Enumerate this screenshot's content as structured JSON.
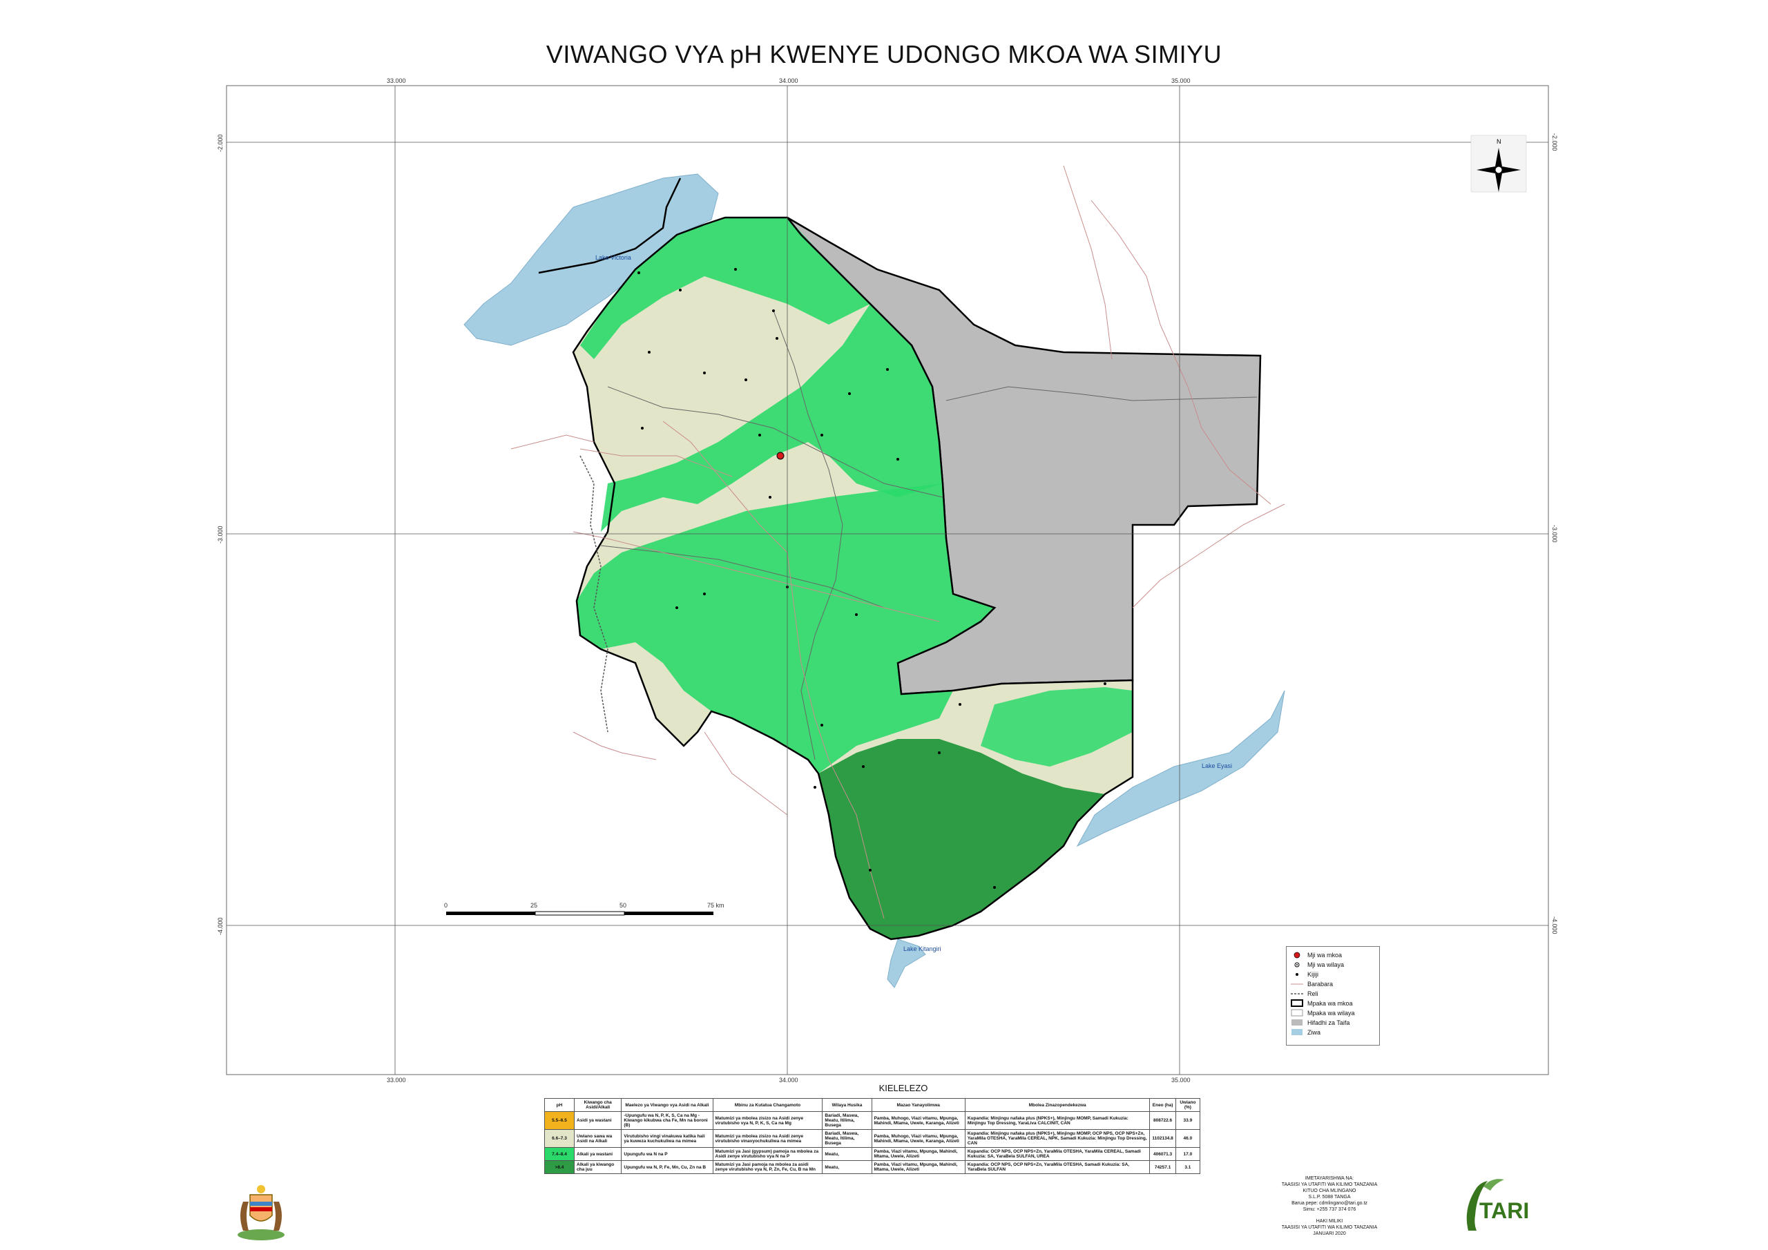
{
  "title": "VIWANGO VYA pH KWENYE UDONGO MKOA WA SIMIYU",
  "grid": {
    "lon_labels": [
      "33.000",
      "34.000",
      "35.000"
    ],
    "lat_labels": [
      "-2.000",
      "-3.000",
      "-4.000"
    ]
  },
  "lakes": {
    "victoria": "Lake Victoria",
    "eyasi": "Lake Eyasi",
    "kitangiri": "Lake Kitangiri"
  },
  "scale_bar": {
    "labels": [
      "0",
      "25",
      "50",
      "75 km"
    ]
  },
  "north_arrow": {
    "label": "N",
    "icon": "compass-rose-icon"
  },
  "legend": {
    "items": [
      {
        "label": "Mji wa mkoa",
        "color": "#d7191c"
      },
      {
        "label": "Mji wa wilaya",
        "color": "#000000"
      },
      {
        "label": "Kijiji",
        "color": "#000000"
      },
      {
        "label": "Barabara",
        "color": "#d9a0a0"
      },
      {
        "label": "Reli",
        "color": "#555555"
      },
      {
        "label": "Mpaka wa mkoa",
        "color": "#000000"
      },
      {
        "label": "Mpaka wa wilaya",
        "color": "#999999"
      },
      {
        "label": "Hifadhi za Taifa",
        "color": "#bbbbbb"
      },
      {
        "label": "Ziwa",
        "color": "#a6cee3"
      }
    ]
  },
  "kielelezo": {
    "title": "KIELELEZO",
    "headers": [
      "pH",
      "Kiwango cha Asidi/Alkali",
      "Maelezo ya Viwango vya Asidi na Alkali",
      "Mbinu za Kutatua Changamoto",
      "Wilaya Husika",
      "Mazao Yanayolimwa",
      "Mbolea Zinazopendekezwa",
      "Eneo (ha)",
      "Uwiano (%)"
    ],
    "rows": [
      {
        "ph": "5.5–6.5",
        "color": "#f2b21b",
        "level": "Asidi ya wastani",
        "desc": "-Upungufu wa N, P, K, S, Ca na Mg -Kiwango kikubwa cha Fe, Mn na boroni (B)",
        "method": "Matumizi ya mbolea zisizo na Asidi zenye virutubisho vya N, P, K, S, Ca na Mg",
        "district": "Bariadi, Maswa, Meatu, Itilima, Busega",
        "crops": "Pamba, Muhogo, Viazi vitamu, Mpunga, Mahindi, Mtama, Uwele, Karanga, Alizeti",
        "fertilizer": "Kupandia: Minjingu nafaka plus (NPKS+), Minjingu MOMP, Samadi Kukuzia: Minjingu Top Dressing, YaraLiva CALCINIT, CAN",
        "area": "808722.6",
        "ratio": "33.9"
      },
      {
        "ph": "6.6–7.3",
        "color": "#e3e5c8",
        "level": "Uwiano sawa wa Asidi na Alkali",
        "desc": "Virutubisho vingi vinakuwa katika hali ya kuweza kuchukuliwa na mimea",
        "method": "Matumizi ya mbolea zisizo na Asidi zenye virutubisho vinavyochukuliwa na mimea",
        "district": "Bariadi, Maswa, Meatu, Itilima, Busega",
        "crops": "Pamba, Muhogo, Viazi vitamu, Mpunga, Mahindi, Mtama, Uwele, Karanga, Alizeti",
        "fertilizer": "Kupandia: Minjingu nafaka plus (NPKS+), Minjingu MOMP, OCP NPS, OCP NPS+Zn, YaraMila OTESHA, YaraMila CEREAL, NPK, Samadi Kukuzia: Minjingu Top Dressing, CAN",
        "area": "1102134.8",
        "ratio": "46.0"
      },
      {
        "ph": "7.4–8.4",
        "color": "#2bd96b",
        "level": "Alkali ya wastani",
        "desc": "Upungufu wa N na P",
        "method": "Matumizi ya Jasi (gypsum) pamoja na mbolea za Asidi zenye virutubisho vya N na P",
        "district": "Meatu,",
        "crops": "Pamba, Viazi vitamu, Mpunga, Mahindi, Mtama, Uwele, Alizeti",
        "fertilizer": "Kupandia: OCP NPS, OCP NPS+Zn, YaraMila OTESHA, YaraMila CEREAL, Samadi Kukuzia: SA, YaraBela SULFAN, UREA",
        "area": "406071.3",
        "ratio": "17.0"
      },
      {
        "ph": ">8.4",
        "color": "#2e9c44",
        "level": "Alkali ya kiwango cha juu",
        "desc": "Upungufu wa N, P, Fe, Mn, Cu, Zn na B",
        "method": "Matumizi ya Jasi pamoja na mbolea za asidi zenye virutubisho vya N, P, Zn, Fe, Cu, B na Mn",
        "district": "Meatu,",
        "crops": "Pamba, Viazi vitamu, Mpunga, Mahindi, Mtama, Uwele, Alizeti",
        "fertilizer": "Kupandia: OCP NPS, OCP NPS+Zn, YaraMila OTESHA, Samadi Kukuzia: SA, YaraBela SULFAN",
        "area": "74257.1",
        "ratio": "3.1"
      }
    ]
  },
  "publisher": {
    "l1": "IMETAYARISHWA NA:",
    "l2": "TAASISI YA UTAFITI WA KILIMO TANZANIA",
    "l3": "KITUO CHA MLINGANO",
    "l4": "S.L.P. 5088 TANGA",
    "l5": "Barua pepe: cdmlingano@tari.go.tz",
    "l6": "Simu: +255 737 374 076",
    "l7": "HAKI MILIKI",
    "l8": "TAASISI YA UTAFITI WA KILIMO TANZANIA",
    "l9": "JANUARI 2020"
  },
  "logos": {
    "tari_text": "TARI",
    "coat_icon": "coat-of-arms-icon",
    "tari_icon": "tari-logo-icon"
  }
}
